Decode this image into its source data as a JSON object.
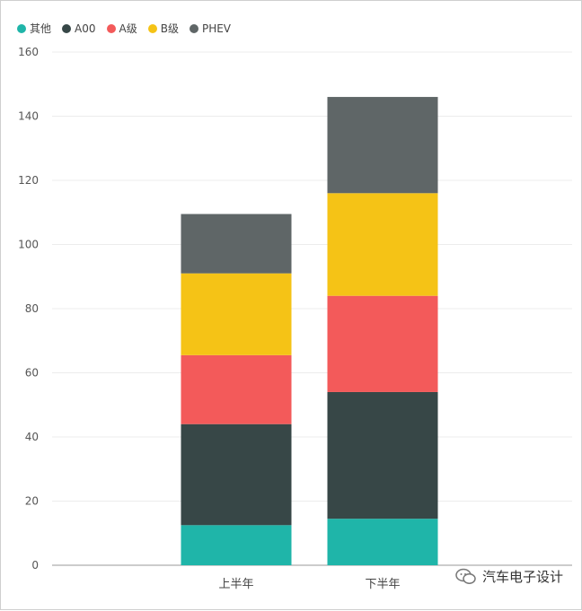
{
  "chart_data": {
    "type": "bar",
    "stacked": true,
    "categories": [
      "上半年",
      "下半年"
    ],
    "series": [
      {
        "name": "其他",
        "color": "#1fb5a9",
        "values": [
          12.5,
          14.5
        ]
      },
      {
        "name": "A00",
        "color": "#374747",
        "values": [
          31.5,
          39.5
        ]
      },
      {
        "name": "A级",
        "color": "#f35a5a",
        "values": [
          21.5,
          30
        ]
      },
      {
        "name": "B级",
        "color": "#f5c316",
        "values": [
          25.5,
          32
        ]
      },
      {
        "name": "PHEV",
        "color": "#5f6667",
        "values": [
          18.5,
          30
        ]
      }
    ],
    "yaxis": {
      "ylim": [
        0,
        160
      ],
      "ticks": [
        "0",
        "20",
        "40",
        "60",
        "80",
        "100",
        "120",
        "140",
        "160"
      ]
    },
    "grid": true,
    "legend": "top-left",
    "title": "",
    "xlabel": "",
    "ylabel": ""
  },
  "watermark": {
    "text": "汽车电子设计",
    "icon": "wechat-icon"
  }
}
